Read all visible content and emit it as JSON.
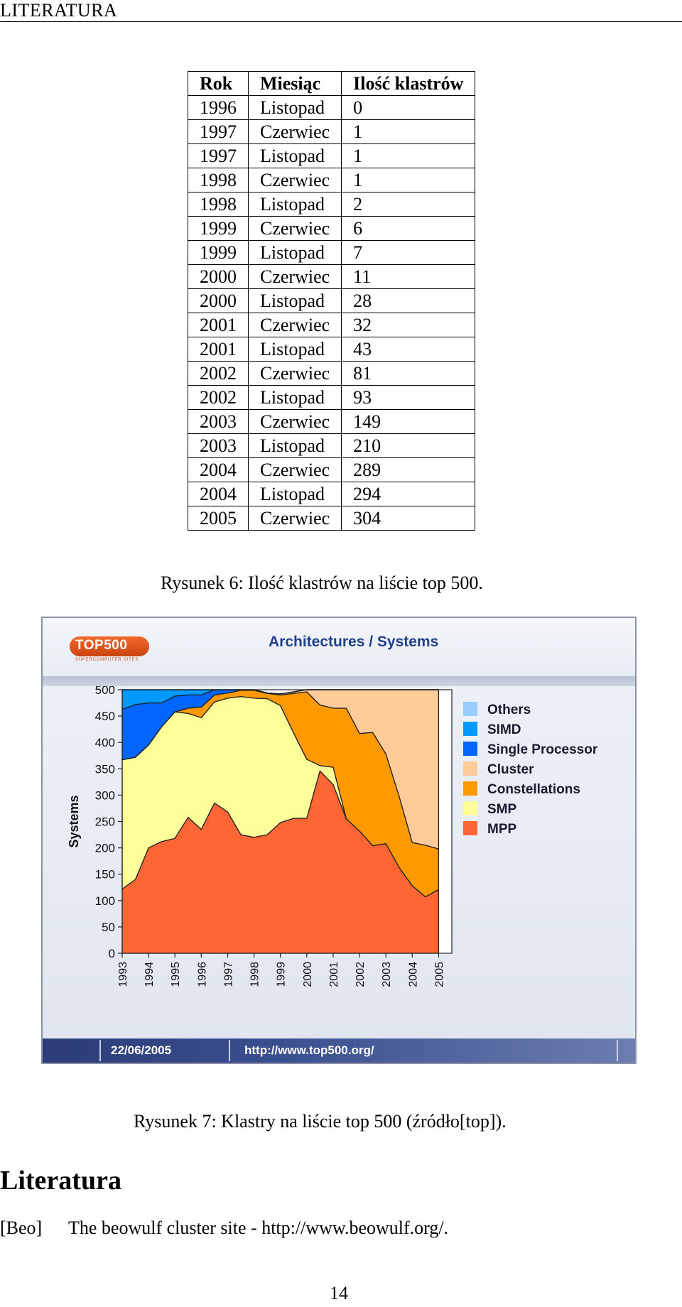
{
  "running_head": "LITERATURA",
  "table": {
    "headers": [
      "Rok",
      "Miesiąc",
      "Ilość klastrów"
    ],
    "rows": [
      [
        "1996",
        "Listopad",
        "0"
      ],
      [
        "1997",
        "Czerwiec",
        "1"
      ],
      [
        "1997",
        "Listopad",
        "1"
      ],
      [
        "1998",
        "Czerwiec",
        "1"
      ],
      [
        "1998",
        "Listopad",
        "2"
      ],
      [
        "1999",
        "Czerwiec",
        "6"
      ],
      [
        "1999",
        "Listopad",
        "7"
      ],
      [
        "2000",
        "Czerwiec",
        "11"
      ],
      [
        "2000",
        "Listopad",
        "28"
      ],
      [
        "2001",
        "Czerwiec",
        "32"
      ],
      [
        "2001",
        "Listopad",
        "43"
      ],
      [
        "2002",
        "Czerwiec",
        "81"
      ],
      [
        "2002",
        "Listopad",
        "93"
      ],
      [
        "2003",
        "Czerwiec",
        "149"
      ],
      [
        "2003",
        "Listopad",
        "210"
      ],
      [
        "2004",
        "Czerwiec",
        "289"
      ],
      [
        "2004",
        "Listopad",
        "294"
      ],
      [
        "2005",
        "Czerwiec",
        "304"
      ]
    ]
  },
  "caption6": "Rysunek 6: Ilość klastrów na liście top 500.",
  "figure7": {
    "logo_text": "TOP500",
    "logo_subtitle": "SUPERCOMPUTER SITES",
    "title": "Architectures / Systems",
    "footer_date": "22/06/2005",
    "footer_url": "http://www.top500.org/"
  },
  "chart_data": {
    "type": "area",
    "stacked": true,
    "title": "Architectures / Systems",
    "ylabel": "Systems",
    "xlabel": "",
    "ylim": [
      0,
      500
    ],
    "yticks": [
      0,
      50,
      100,
      150,
      200,
      250,
      300,
      350,
      400,
      450,
      500
    ],
    "xlim": [
      1993.0,
      2005.5
    ],
    "xticks": [
      "1993",
      "1994",
      "1995",
      "1996",
      "1997",
      "1998",
      "1999",
      "2000",
      "2001",
      "2002",
      "2003",
      "2004",
      "2005"
    ],
    "x": [
      1993.0,
      1993.5,
      1994.0,
      1994.5,
      1995.0,
      1995.5,
      1996.0,
      1996.5,
      1997.0,
      1997.5,
      1998.0,
      1998.5,
      1999.0,
      1999.5,
      2000.0,
      2000.5,
      2001.0,
      2001.5,
      2002.0,
      2002.5,
      2003.0,
      2003.5,
      2004.0,
      2004.5,
      2005.0
    ],
    "legend_position": "right",
    "series": [
      {
        "name": "MPP",
        "color": "#ff6633",
        "values": [
          122,
          140,
          200,
          212,
          218,
          258,
          235,
          285,
          268,
          225,
          220,
          225,
          248,
          256,
          256,
          346,
          320,
          255,
          232,
          204,
          208,
          163,
          128,
          107,
          121
        ]
      },
      {
        "name": "SMP",
        "color": "#ffff99",
        "values": [
          245,
          232,
          195,
          218,
          240,
          197,
          212,
          192,
          216,
          262,
          264,
          258,
          222,
          162,
          112,
          10,
          33,
          0,
          0,
          0,
          0,
          0,
          0,
          0,
          0
        ]
      },
      {
        "name": "Constellations",
        "color": "#ff9900",
        "values": [
          0,
          0,
          0,
          0,
          0,
          10,
          20,
          13,
          10,
          12,
          15,
          10,
          20,
          75,
          128,
          115,
          112,
          210,
          185,
          215,
          170,
          135,
          82,
          98,
          77
        ]
      },
      {
        "name": "Cluster",
        "color": "#ffcc99",
        "values": [
          0,
          0,
          0,
          0,
          0,
          0,
          0,
          0,
          0,
          0,
          0,
          1,
          2,
          3,
          4,
          29,
          35,
          35,
          83,
          81,
          122,
          202,
          290,
          295,
          302
        ]
      },
      {
        "name": "Single Processor",
        "color": "#0066ff",
        "values": [
          96,
          100,
          80,
          45,
          30,
          25,
          23,
          10,
          6,
          1,
          1,
          0,
          0,
          0,
          0,
          0,
          0,
          0,
          0,
          0,
          0,
          0,
          0,
          0,
          0
        ]
      },
      {
        "name": "SIMD",
        "color": "#0099ff",
        "values": [
          37,
          28,
          25,
          25,
          12,
          10,
          10,
          0,
          0,
          0,
          0,
          0,
          0,
          0,
          0,
          0,
          0,
          0,
          0,
          0,
          0,
          0,
          0,
          0,
          0
        ]
      },
      {
        "name": "Others",
        "color": "#99ccff",
        "values": [
          0,
          0,
          0,
          0,
          0,
          0,
          0,
          0,
          0,
          0,
          0,
          0,
          0,
          0,
          0,
          0,
          0,
          0,
          0,
          0,
          0,
          0,
          0,
          0,
          0
        ]
      }
    ],
    "legend": [
      "Others",
      "SIMD",
      "Single Processor",
      "Cluster",
      "Constellations",
      "SMP",
      "MPP"
    ]
  },
  "caption7": "Rysunek 7: Klastry na liście top 500 (źródło[top]).",
  "section_title": "Literatura",
  "bibliography": [
    {
      "key": "[Beo]",
      "text": "The beowulf cluster site - http://www.beowulf.org/."
    }
  ],
  "page_number": "14"
}
